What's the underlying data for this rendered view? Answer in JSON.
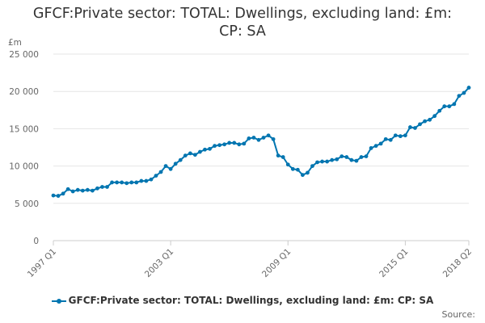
{
  "chart_data": {
    "type": "line",
    "title": "GFCF:Private sector: TOTAL: Dwellings, excluding land: £m: CP: SA",
    "title_lines": [
      "GFCF:Private sector: TOTAL: Dwellings, excluding land: £m:",
      "CP: SA"
    ],
    "ylabel": "£m",
    "xlabel": "",
    "ylim": [
      0,
      25000
    ],
    "y_ticks": [
      0,
      5000,
      10000,
      15000,
      20000,
      25000
    ],
    "y_tick_labels": [
      "0",
      "5 000",
      "10 000",
      "15 000",
      "20 000",
      "25 000"
    ],
    "x_tick_labels": [
      "1997 Q1",
      "2003 Q1",
      "2009 Q1",
      "2015 Q1",
      "2018 Q2"
    ],
    "x_tick_index": [
      0,
      24,
      48,
      72,
      85
    ],
    "grid": true,
    "legend_position": "bottom",
    "series": [
      {
        "name": "GFCF:Private sector: TOTAL: Dwellings, excluding land: £m: CP: SA",
        "color": "#0075b0",
        "x": [
          "1997 Q1",
          "1997 Q2",
          "1997 Q3",
          "1997 Q4",
          "1998 Q1",
          "1998 Q2",
          "1998 Q3",
          "1998 Q4",
          "1999 Q1",
          "1999 Q2",
          "1999 Q3",
          "1999 Q4",
          "2000 Q1",
          "2000 Q2",
          "2000 Q3",
          "2000 Q4",
          "2001 Q1",
          "2001 Q2",
          "2001 Q3",
          "2001 Q4",
          "2002 Q1",
          "2002 Q2",
          "2002 Q3",
          "2002 Q4",
          "2003 Q1",
          "2003 Q2",
          "2003 Q3",
          "2003 Q4",
          "2004 Q1",
          "2004 Q2",
          "2004 Q3",
          "2004 Q4",
          "2005 Q1",
          "2005 Q2",
          "2005 Q3",
          "2005 Q4",
          "2006 Q1",
          "2006 Q2",
          "2006 Q3",
          "2006 Q4",
          "2007 Q1",
          "2007 Q2",
          "2007 Q3",
          "2007 Q4",
          "2008 Q1",
          "2008 Q2",
          "2008 Q3",
          "2008 Q4",
          "2009 Q1",
          "2009 Q2",
          "2009 Q3",
          "2009 Q4",
          "2010 Q1",
          "2010 Q2",
          "2010 Q3",
          "2010 Q4",
          "2011 Q1",
          "2011 Q2",
          "2011 Q3",
          "2011 Q4",
          "2012 Q1",
          "2012 Q2",
          "2012 Q3",
          "2012 Q4",
          "2013 Q1",
          "2013 Q2",
          "2013 Q3",
          "2013 Q4",
          "2014 Q1",
          "2014 Q2",
          "2014 Q3",
          "2014 Q4",
          "2015 Q1",
          "2015 Q2",
          "2015 Q3",
          "2015 Q4",
          "2016 Q1",
          "2016 Q2",
          "2016 Q3",
          "2016 Q4",
          "2017 Q1",
          "2017 Q2",
          "2017 Q3",
          "2017 Q4",
          "2018 Q1",
          "2018 Q2"
        ],
        "values": [
          6050,
          6000,
          6300,
          6900,
          6600,
          6800,
          6700,
          6800,
          6700,
          7000,
          7200,
          7200,
          7800,
          7800,
          7800,
          7700,
          7800,
          7800,
          8000,
          8000,
          8200,
          8700,
          9200,
          10000,
          9600,
          10300,
          10800,
          11400,
          11700,
          11500,
          11900,
          12200,
          12300,
          12700,
          12800,
          12900,
          13100,
          13100,
          12900,
          13000,
          13700,
          13800,
          13500,
          13800,
          14100,
          13600,
          11400,
          11200,
          10200,
          9600,
          9500,
          8800,
          9100,
          10000,
          10500,
          10600,
          10600,
          10800,
          10900,
          11300,
          11200,
          10800,
          10700,
          11200,
          11300,
          12400,
          12700,
          13000,
          13600,
          13500,
          14100,
          14000,
          14100,
          15200,
          15100,
          15600,
          16000,
          16200,
          16700,
          17400,
          18000,
          18000,
          18300,
          19400,
          19800,
          20500
        ]
      }
    ]
  },
  "legend": {
    "label": "GFCF:Private sector: TOTAL: Dwellings, excluding land: £m: CP: SA"
  },
  "source": {
    "label": "Source:"
  }
}
